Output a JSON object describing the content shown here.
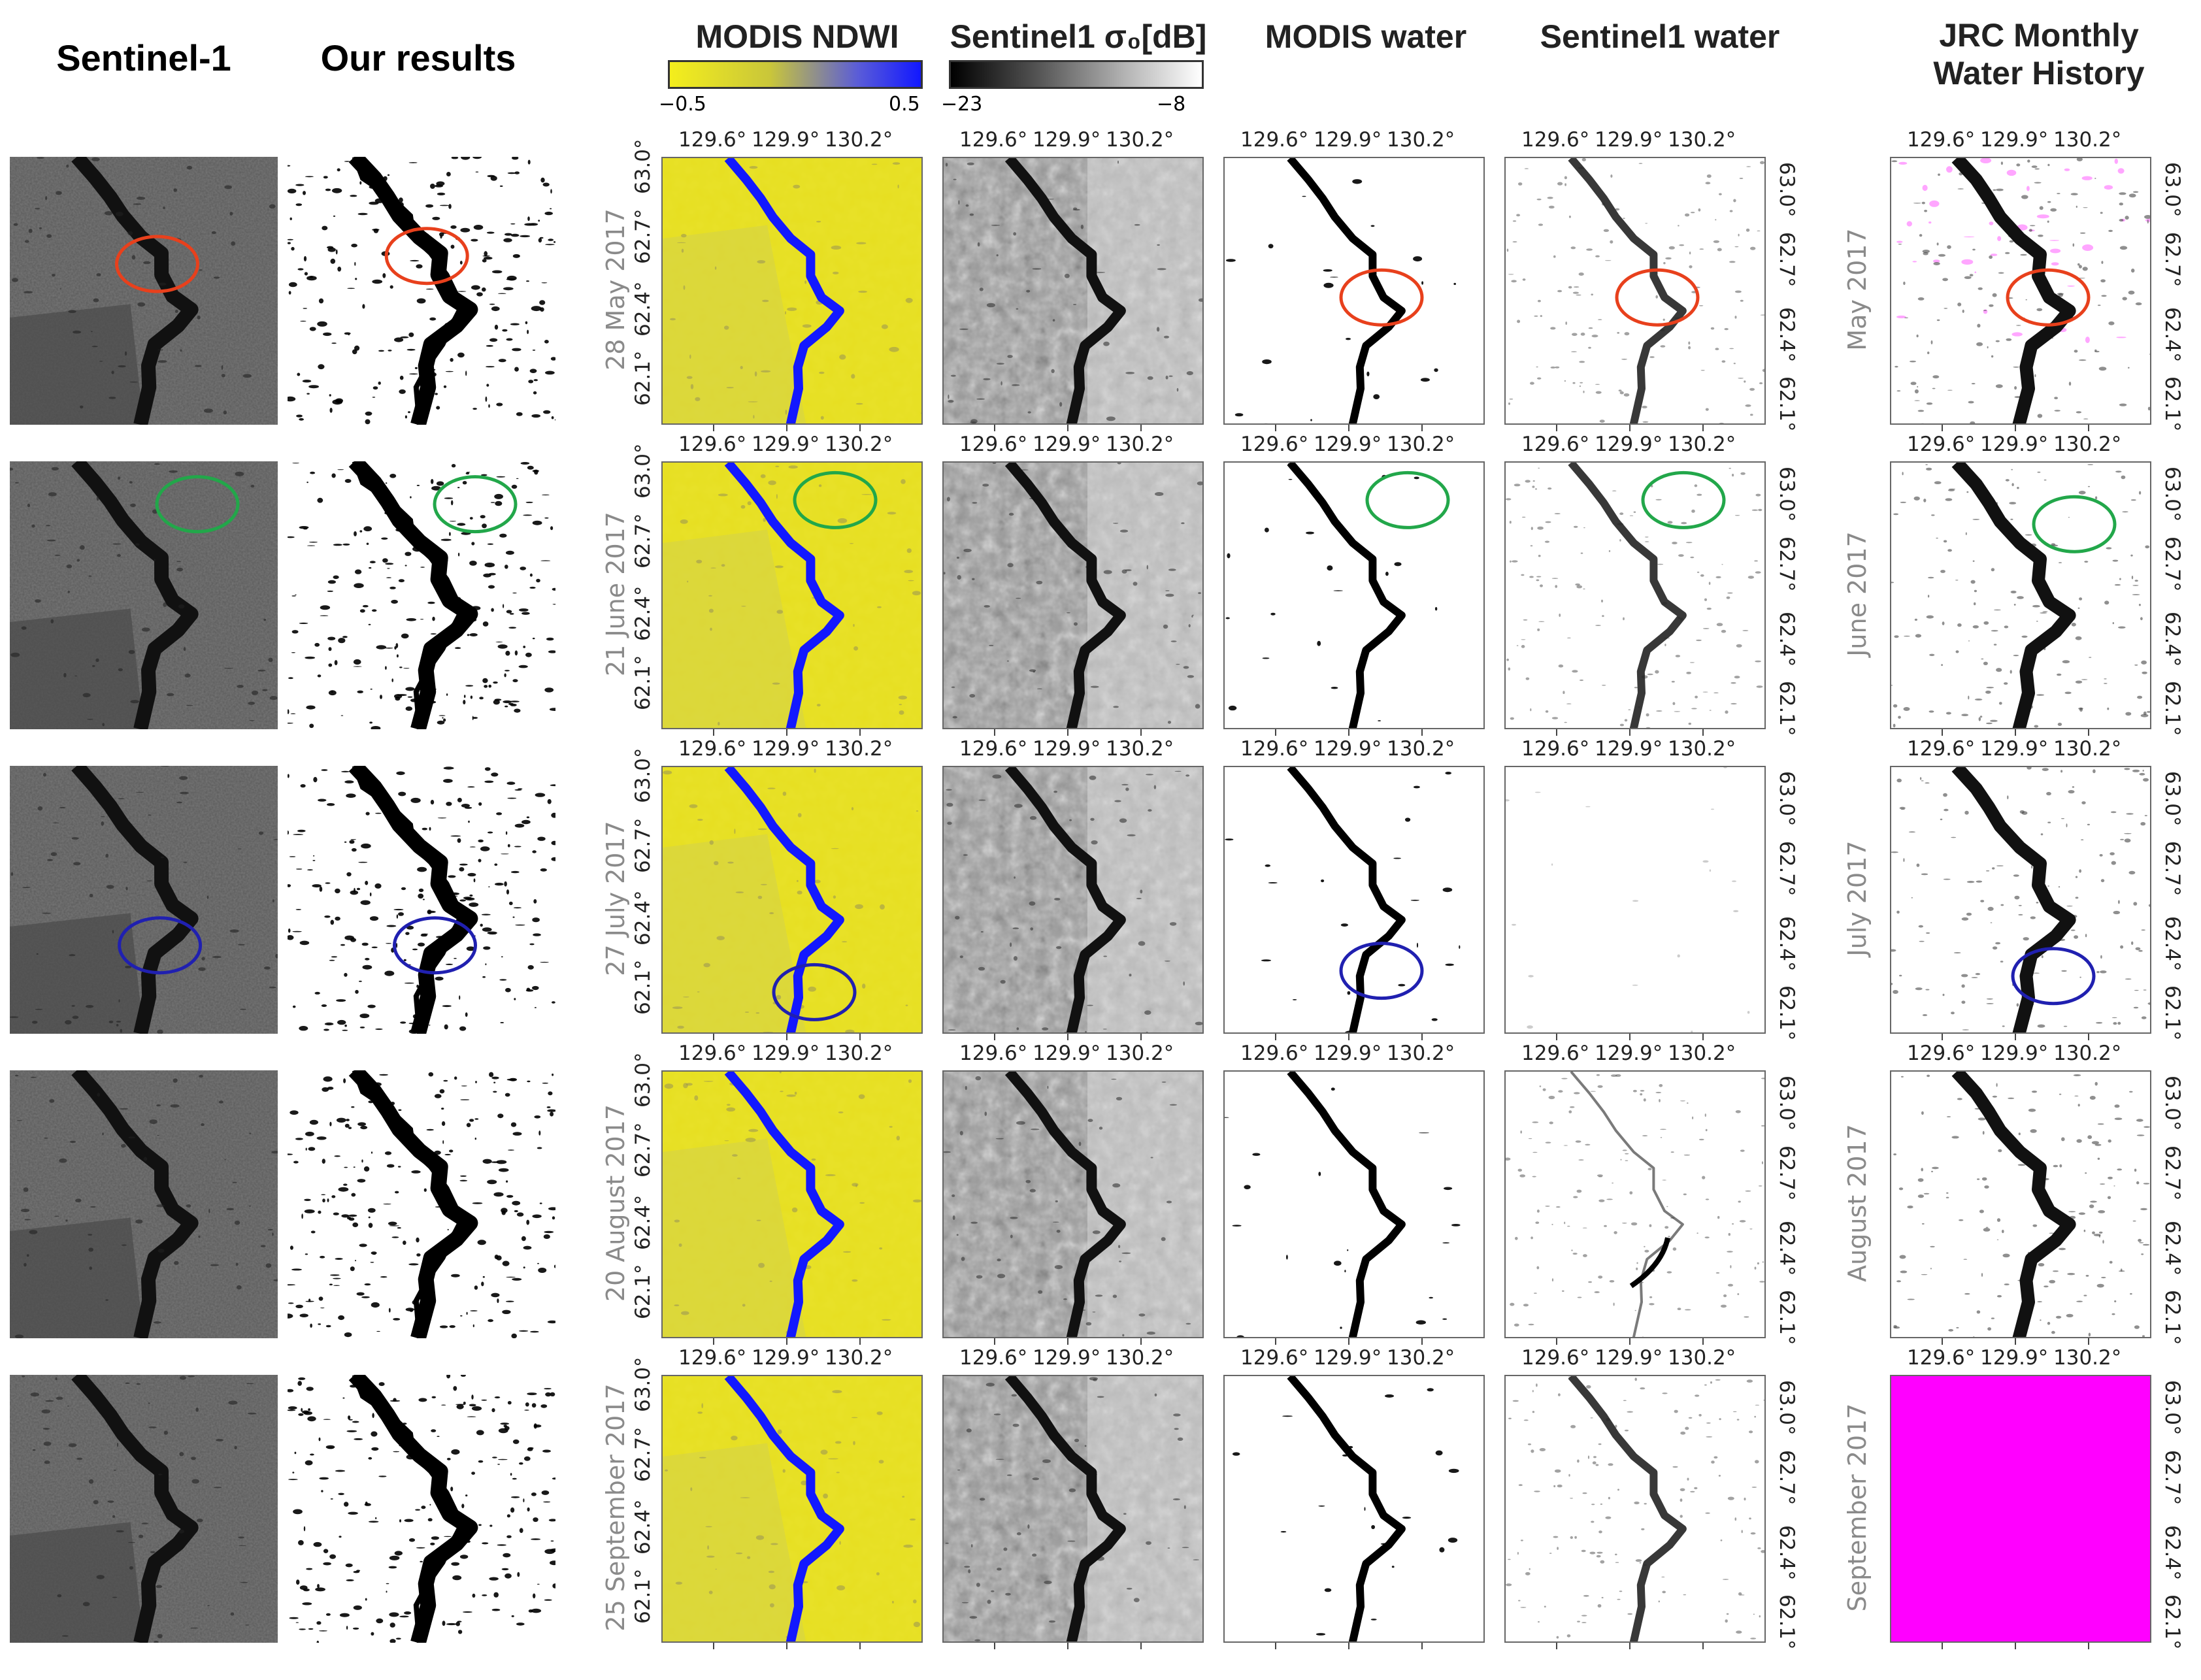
{
  "figure": {
    "columns": {
      "sentinel1": "Sentinel-1",
      "our_results": "Our results",
      "modis_ndwi": "MODIS NDWI",
      "sentinel1_sigma": "Sentinel1 σ₀[dB]",
      "modis_water": "MODIS water",
      "sentinel1_water": "Sentinel1 water",
      "jrc_line1": "JRC  Monthly",
      "jrc_line2": "Water History"
    },
    "colorbars": {
      "ndwi": {
        "min": "−0.5",
        "max": "0.5",
        "color_low": "#f4ee1c",
        "color_high": "#1218ff"
      },
      "sigma": {
        "min": "−23",
        "max": "−8",
        "color_low": "#000000",
        "color_high": "#ffffff"
      }
    },
    "axes": {
      "lon_ticks": [
        "129.6°",
        "129.9°",
        "130.2°"
      ],
      "lat_ticks": [
        "63.0°",
        "62.7°",
        "62.4°",
        "62.1°"
      ]
    },
    "rows": [
      {
        "date": "28 May 2017",
        "jrc_label": "May 2017"
      },
      {
        "date": "21 June 2017",
        "jrc_label": "June 2017"
      },
      {
        "date": "27 July 2017",
        "jrc_label": "July 2017"
      },
      {
        "date": "20 August 2017",
        "jrc_label": "August 2017"
      },
      {
        "date": "25 September 2017",
        "jrc_label": "September 2017"
      }
    ],
    "highlight_colors": {
      "red": "#e8401c",
      "green": "#22a74a",
      "blue": "#2020b0",
      "magenta": "#ff00ff"
    }
  }
}
